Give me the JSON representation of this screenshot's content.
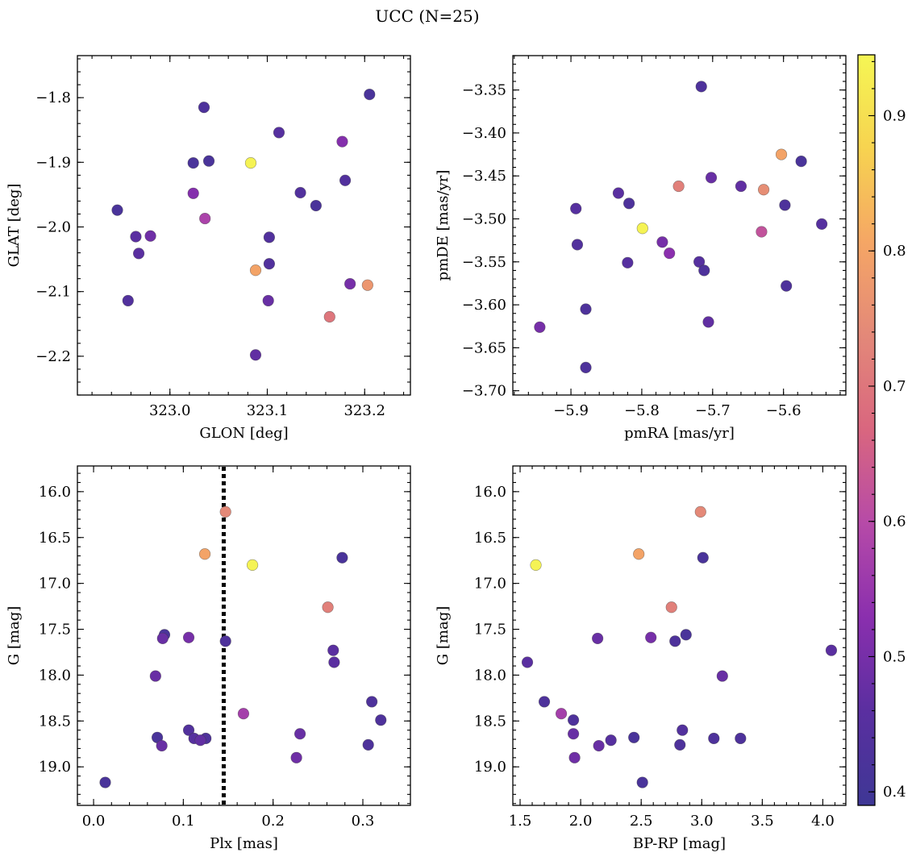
{
  "chart_data": {
    "title": "UCC (N=25)",
    "colorbar": {
      "range": [
        0.39,
        0.945
      ],
      "ticks": [
        0.4,
        0.5,
        0.6,
        0.7,
        0.8,
        0.9
      ],
      "tick_labels": [
        "0.4",
        "0.5",
        "0.6",
        "0.7",
        "0.8",
        "0.9"
      ],
      "colormap": "plasma (truncated)",
      "colors": [
        "#3e3795",
        "#5a2fa0",
        "#8a2fae",
        "#b64aa8",
        "#d9667f",
        "#e38879",
        "#f5a665",
        "#f7d350",
        "#f5f654"
      ]
    },
    "panels": [
      {
        "id": "glon-glat",
        "type": "scatter",
        "xlabel": "GLON [deg]",
        "ylabel": "GLAT [deg]",
        "xlim": [
          322.905,
          323.247
        ],
        "ylim": [
          -2.26,
          -1.735
        ],
        "y_inverted": false,
        "xticks": [
          323.0,
          323.1,
          323.2
        ],
        "xtick_labels": [
          "323.0",
          "323.1",
          "323.2"
        ],
        "yticks": [
          -1.8,
          -1.9,
          -2.0,
          -2.1,
          -2.2
        ],
        "ytick_labels": [
          "−1.8",
          "−1.9",
          "−2.0",
          "−2.1",
          "−2.2"
        ],
        "points": [
          {
            "x": 323.205,
            "y": -1.795,
            "c": 0.42
          },
          {
            "x": 323.035,
            "y": -1.815,
            "c": 0.43
          },
          {
            "x": 323.112,
            "y": -1.854,
            "c": 0.45
          },
          {
            "x": 323.177,
            "y": -1.868,
            "c": 0.52
          },
          {
            "x": 323.024,
            "y": -1.901,
            "c": 0.42
          },
          {
            "x": 323.04,
            "y": -1.898,
            "c": 0.42
          },
          {
            "x": 323.083,
            "y": -1.901,
            "c": 0.94
          },
          {
            "x": 323.18,
            "y": -1.928,
            "c": 0.44
          },
          {
            "x": 323.024,
            "y": -1.948,
            "c": 0.52
          },
          {
            "x": 323.134,
            "y": -1.947,
            "c": 0.44
          },
          {
            "x": 322.946,
            "y": -1.974,
            "c": 0.42
          },
          {
            "x": 323.15,
            "y": -1.967,
            "c": 0.42
          },
          {
            "x": 323.036,
            "y": -1.987,
            "c": 0.58
          },
          {
            "x": 322.965,
            "y": -2.015,
            "c": 0.46
          },
          {
            "x": 322.98,
            "y": -2.014,
            "c": 0.49
          },
          {
            "x": 323.102,
            "y": -2.016,
            "c": 0.44
          },
          {
            "x": 322.968,
            "y": -2.041,
            "c": 0.46
          },
          {
            "x": 323.102,
            "y": -2.057,
            "c": 0.44
          },
          {
            "x": 323.088,
            "y": -2.067,
            "c": 0.8
          },
          {
            "x": 323.203,
            "y": -2.09,
            "c": 0.77
          },
          {
            "x": 323.185,
            "y": -2.088,
            "c": 0.5
          },
          {
            "x": 322.957,
            "y": -2.114,
            "c": 0.44
          },
          {
            "x": 323.101,
            "y": -2.114,
            "c": 0.48
          },
          {
            "x": 323.164,
            "y": -2.139,
            "c": 0.7
          },
          {
            "x": 323.088,
            "y": -2.198,
            "c": 0.47
          }
        ]
      },
      {
        "id": "pmra-pmde",
        "type": "scatter",
        "xlabel": "pmRA [mas/yr]",
        "ylabel": "pmDE [mas/yr]",
        "xlim": [
          -5.982,
          -5.512
        ],
        "ylim": [
          -3.705,
          -3.31
        ],
        "y_inverted": false,
        "xticks": [
          -5.9,
          -5.8,
          -5.7,
          -5.6
        ],
        "xtick_labels": [
          "−5.9",
          "−5.8",
          "−5.7",
          "−5.6"
        ],
        "yticks": [
          -3.35,
          -3.4,
          -3.45,
          -3.5,
          -3.55,
          -3.6,
          -3.65,
          -3.7
        ],
        "ytick_labels": [
          "−3.35",
          "−3.40",
          "−3.45",
          "−3.50",
          "−3.55",
          "−3.60",
          "−3.65",
          "−3.70"
        ],
        "points": [
          {
            "x": -5.716,
            "y": -3.346,
            "c": 0.43
          },
          {
            "x": -5.603,
            "y": -3.425,
            "c": 0.8
          },
          {
            "x": -5.575,
            "y": -3.433,
            "c": 0.42
          },
          {
            "x": -5.702,
            "y": -3.452,
            "c": 0.48
          },
          {
            "x": -5.748,
            "y": -3.462,
            "c": 0.72
          },
          {
            "x": -5.66,
            "y": -3.462,
            "c": 0.47
          },
          {
            "x": -5.628,
            "y": -3.466,
            "c": 0.75
          },
          {
            "x": -5.833,
            "y": -3.47,
            "c": 0.46
          },
          {
            "x": -5.818,
            "y": -3.482,
            "c": 0.43
          },
          {
            "x": -5.598,
            "y": -3.484,
            "c": 0.43
          },
          {
            "x": -5.893,
            "y": -3.488,
            "c": 0.45
          },
          {
            "x": -5.546,
            "y": -3.506,
            "c": 0.45
          },
          {
            "x": -5.799,
            "y": -3.511,
            "c": 0.94
          },
          {
            "x": -5.631,
            "y": -3.515,
            "c": 0.62
          },
          {
            "x": -5.771,
            "y": -3.527,
            "c": 0.5
          },
          {
            "x": -5.891,
            "y": -3.53,
            "c": 0.44
          },
          {
            "x": -5.761,
            "y": -3.54,
            "c": 0.53
          },
          {
            "x": -5.82,
            "y": -3.551,
            "c": 0.45
          },
          {
            "x": -5.719,
            "y": -3.55,
            "c": 0.45
          },
          {
            "x": -5.712,
            "y": -3.56,
            "c": 0.43
          },
          {
            "x": -5.596,
            "y": -3.578,
            "c": 0.43
          },
          {
            "x": -5.879,
            "y": -3.605,
            "c": 0.43
          },
          {
            "x": -5.706,
            "y": -3.62,
            "c": 0.47
          },
          {
            "x": -5.944,
            "y": -3.626,
            "c": 0.5
          },
          {
            "x": -5.879,
            "y": -3.673,
            "c": 0.43
          }
        ]
      },
      {
        "id": "plx-g",
        "type": "scatter",
        "xlabel": "Plx [mas]",
        "ylabel": "G [mag]",
        "xlim": [
          -0.018,
          0.353
        ],
        "ylim": [
          15.72,
          19.42
        ],
        "y_inverted": true,
        "xticks": [
          0.0,
          0.1,
          0.2,
          0.3
        ],
        "xtick_labels": [
          "0.0",
          "0.1",
          "0.2",
          "0.3"
        ],
        "yticks": [
          16.0,
          16.5,
          17.0,
          17.5,
          18.0,
          18.5,
          19.0
        ],
        "ytick_labels": [
          "16.0",
          "16.5",
          "17.0",
          "17.5",
          "18.0",
          "18.5",
          "19.0"
        ],
        "vline": {
          "x": 0.145,
          "style": "dotted"
        },
        "points": [
          {
            "x": 0.147,
            "y": 16.22,
            "c": 0.74
          },
          {
            "x": 0.124,
            "y": 16.68,
            "c": 0.8
          },
          {
            "x": 0.177,
            "y": 16.8,
            "c": 0.94
          },
          {
            "x": 0.277,
            "y": 16.72,
            "c": 0.42
          },
          {
            "x": 0.261,
            "y": 17.26,
            "c": 0.72
          },
          {
            "x": 0.079,
            "y": 17.56,
            "c": 0.42
          },
          {
            "x": 0.077,
            "y": 17.6,
            "c": 0.48
          },
          {
            "x": 0.106,
            "y": 17.59,
            "c": 0.5
          },
          {
            "x": 0.147,
            "y": 17.63,
            "c": 0.43
          },
          {
            "x": 0.267,
            "y": 17.73,
            "c": 0.46
          },
          {
            "x": 0.268,
            "y": 17.86,
            "c": 0.46
          },
          {
            "x": 0.069,
            "y": 18.01,
            "c": 0.48
          },
          {
            "x": 0.167,
            "y": 18.42,
            "c": 0.57
          },
          {
            "x": 0.31,
            "y": 18.29,
            "c": 0.43
          },
          {
            "x": 0.32,
            "y": 18.49,
            "c": 0.43
          },
          {
            "x": 0.106,
            "y": 18.6,
            "c": 0.44
          },
          {
            "x": 0.23,
            "y": 18.64,
            "c": 0.48
          },
          {
            "x": 0.071,
            "y": 18.68,
            "c": 0.42
          },
          {
            "x": 0.112,
            "y": 18.69,
            "c": 0.45
          },
          {
            "x": 0.125,
            "y": 18.69,
            "c": 0.43
          },
          {
            "x": 0.119,
            "y": 18.71,
            "c": 0.47
          },
          {
            "x": 0.076,
            "y": 18.77,
            "c": 0.48
          },
          {
            "x": 0.306,
            "y": 18.76,
            "c": 0.43
          },
          {
            "x": 0.226,
            "y": 18.9,
            "c": 0.49
          },
          {
            "x": 0.013,
            "y": 19.17,
            "c": 0.42
          }
        ]
      },
      {
        "id": "bprp-g",
        "type": "scatter",
        "xlabel": "BP-RP [mag]",
        "ylabel": "G [mag]",
        "xlim": [
          1.44,
          4.19
        ],
        "ylim": [
          15.72,
          19.42
        ],
        "y_inverted": true,
        "xticks": [
          1.5,
          2.0,
          2.5,
          3.0,
          3.5,
          4.0
        ],
        "xtick_labels": [
          "1.5",
          "2.0",
          "2.5",
          "3.0",
          "3.5",
          "4.0"
        ],
        "yticks": [
          16.0,
          16.5,
          17.0,
          17.5,
          18.0,
          18.5,
          19.0
        ],
        "ytick_labels": [
          "16.0",
          "16.5",
          "17.0",
          "17.5",
          "18.0",
          "18.5",
          "19.0"
        ],
        "points": [
          {
            "x": 2.99,
            "y": 16.22,
            "c": 0.74
          },
          {
            "x": 2.48,
            "y": 16.68,
            "c": 0.8
          },
          {
            "x": 1.63,
            "y": 16.8,
            "c": 0.94
          },
          {
            "x": 3.01,
            "y": 16.72,
            "c": 0.42
          },
          {
            "x": 2.75,
            "y": 17.26,
            "c": 0.72
          },
          {
            "x": 2.14,
            "y": 17.6,
            "c": 0.48
          },
          {
            "x": 2.58,
            "y": 17.59,
            "c": 0.5
          },
          {
            "x": 2.78,
            "y": 17.63,
            "c": 0.43
          },
          {
            "x": 2.87,
            "y": 17.56,
            "c": 0.42
          },
          {
            "x": 4.07,
            "y": 17.73,
            "c": 0.46
          },
          {
            "x": 1.56,
            "y": 17.86,
            "c": 0.46
          },
          {
            "x": 3.17,
            "y": 18.01,
            "c": 0.48
          },
          {
            "x": 1.7,
            "y": 18.29,
            "c": 0.43
          },
          {
            "x": 1.84,
            "y": 18.42,
            "c": 0.57
          },
          {
            "x": 1.94,
            "y": 18.49,
            "c": 0.43
          },
          {
            "x": 1.94,
            "y": 18.64,
            "c": 0.48
          },
          {
            "x": 2.84,
            "y": 18.6,
            "c": 0.44
          },
          {
            "x": 2.44,
            "y": 18.68,
            "c": 0.42
          },
          {
            "x": 2.25,
            "y": 18.71,
            "c": 0.45
          },
          {
            "x": 3.1,
            "y": 18.69,
            "c": 0.43
          },
          {
            "x": 3.32,
            "y": 18.69,
            "c": 0.43
          },
          {
            "x": 2.15,
            "y": 18.77,
            "c": 0.48
          },
          {
            "x": 2.82,
            "y": 18.76,
            "c": 0.43
          },
          {
            "x": 1.95,
            "y": 18.9,
            "c": 0.49
          },
          {
            "x": 2.51,
            "y": 19.17,
            "c": 0.42
          }
        ]
      }
    ]
  }
}
